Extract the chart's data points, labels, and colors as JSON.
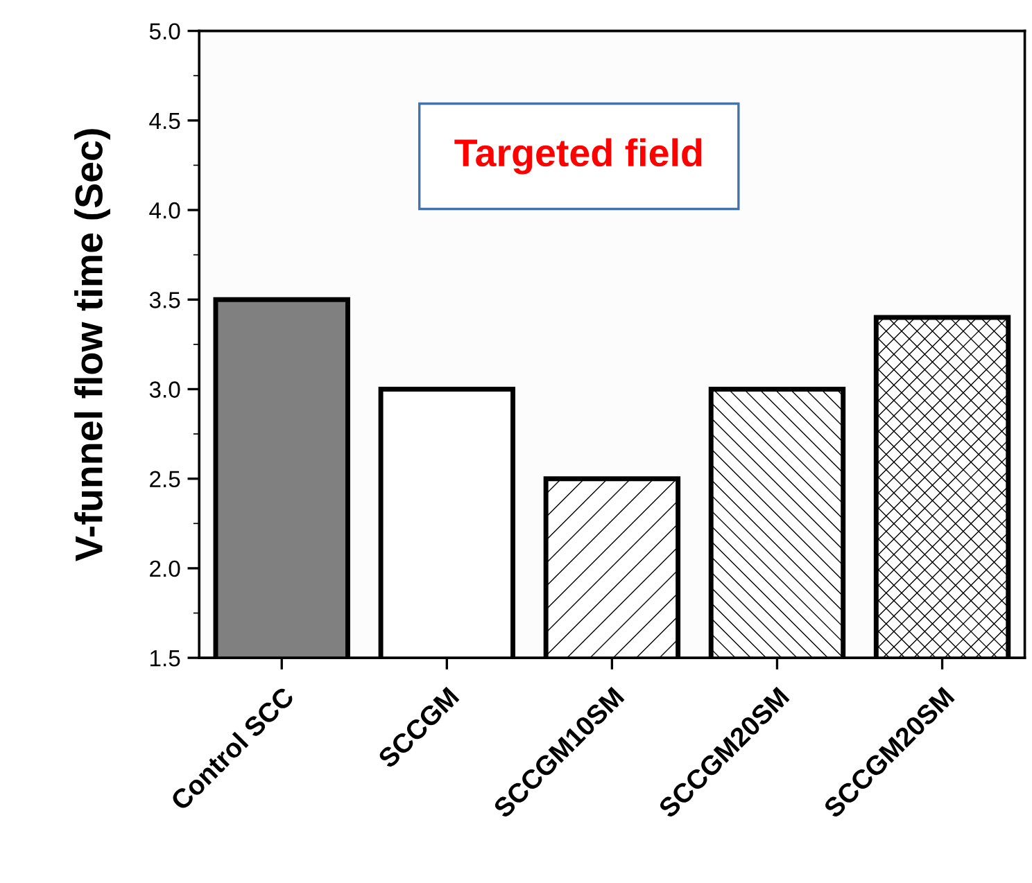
{
  "chart_data": {
    "type": "bar",
    "ylabel": "V-funnel flow time (Sec)",
    "categories": [
      "Control SCC",
      "SCCGM",
      "SCCGM10SM",
      "SCCGM20SM",
      "SCCGM20SM"
    ],
    "values": [
      3.5,
      3.0,
      2.5,
      3.0,
      3.4
    ],
    "colors": [
      "#808080",
      "#ffffff",
      "#ffffff",
      "#ffffff",
      "#ffffff"
    ],
    "ylim": [
      1.5,
      5.0
    ],
    "yticks": [
      1.5,
      {
        "value": 2,
        "label": "2.0"
      },
      2.5,
      {
        "value": 3,
        "label": "3.0"
      },
      3.5,
      {
        "value": 4,
        "label": "4.0"
      },
      4.5,
      {
        "value": 5,
        "label": "5.0"
      }
    ],
    "annotations": [
      "Targeted field"
    ],
    "grid": false,
    "legend": false
  }
}
